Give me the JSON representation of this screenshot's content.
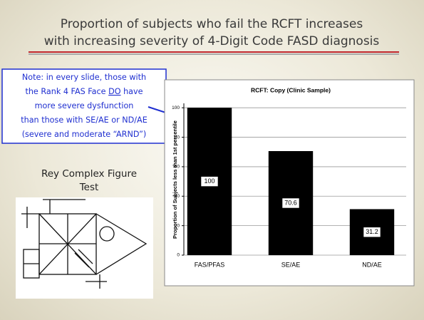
{
  "slide_title": [
    "Proportion of subjects who fail the RCFT increases",
    "with increasing severity of 4-Digit Code FASD diagnosis"
  ],
  "note": [
    "Note: in every slide, those with",
    {
      "before": "the Rank 4 FAS Face ",
      "underlined": "DO",
      "after": " have"
    },
    "more severe dysfunction",
    "than those with SE/AE or ND/AE",
    "(severe and moderate “ARND”)"
  ],
  "figure_caption": [
    "Rey Complex Figure",
    "Test"
  ],
  "chart_data": {
    "type": "bar",
    "title": "RCFT: Copy (Clinic Sample)",
    "y_label": "Proportion of Subjects less than 1st percentile",
    "categories": [
      "FAS/PFAS",
      "SE/AE",
      "ND/AE"
    ],
    "values": [
      100,
      70.6,
      31.2
    ],
    "color": "#000000",
    "ylim": [
      0,
      103
    ],
    "yticks": [
      0,
      20,
      40,
      60,
      80,
      100
    ],
    "grid": true
  }
}
